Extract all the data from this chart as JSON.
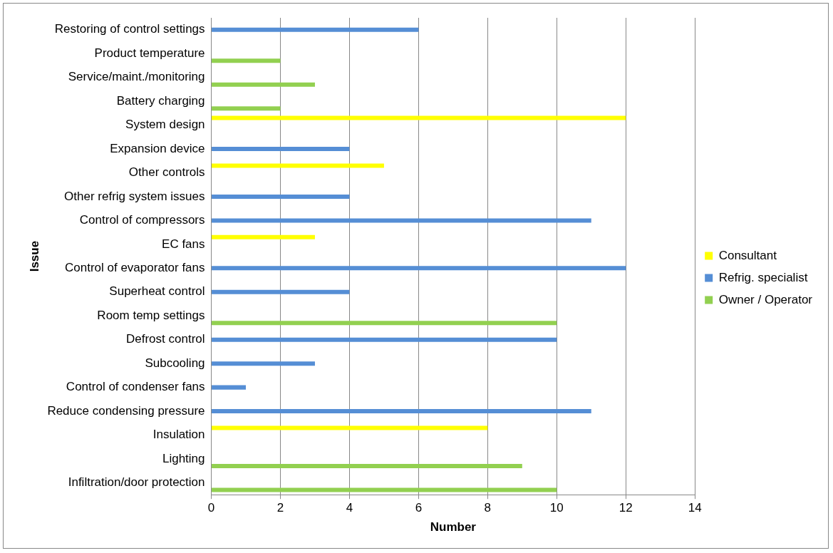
{
  "chart_data": {
    "type": "bar",
    "orientation": "horizontal",
    "xlabel": "Number",
    "ylabel": "Issue",
    "categories": [
      "Restoring of control settings",
      "Product temperature",
      "Service/maint./monitoring",
      "Battery charging",
      "System design",
      "Expansion device",
      "Other controls",
      "Other refrig system issues",
      "Control of compressors",
      "EC fans",
      "Control of evaporator fans",
      "Superheat control",
      "Room temp settings",
      "Defrost control",
      "Subcooling",
      "Control of condenser fans",
      "Reduce condensing pressure",
      "Insulation",
      "Lighting",
      "Infiltration/door protection"
    ],
    "series": [
      {
        "name": "Consultant",
        "color": "#ffff00",
        "values": [
          null,
          null,
          null,
          null,
          12,
          null,
          5,
          null,
          null,
          3,
          null,
          null,
          null,
          null,
          null,
          null,
          null,
          8,
          null,
          null
        ]
      },
      {
        "name": "Refrig. specialist",
        "color": "#558ed5",
        "values": [
          6,
          null,
          null,
          null,
          null,
          4,
          null,
          4,
          11,
          null,
          12,
          4,
          null,
          10,
          3,
          1,
          11,
          null,
          null,
          null
        ]
      },
      {
        "name": "Owner / Operator",
        "color": "#92d050",
        "values": [
          null,
          2,
          3,
          2,
          null,
          null,
          null,
          null,
          null,
          null,
          null,
          null,
          10,
          null,
          null,
          null,
          null,
          null,
          9,
          10
        ]
      }
    ],
    "xlim": [
      0,
      14
    ],
    "xticks": [
      0,
      2,
      4,
      6,
      8,
      10,
      12,
      14
    ],
    "grid": "x",
    "legend": "right"
  }
}
